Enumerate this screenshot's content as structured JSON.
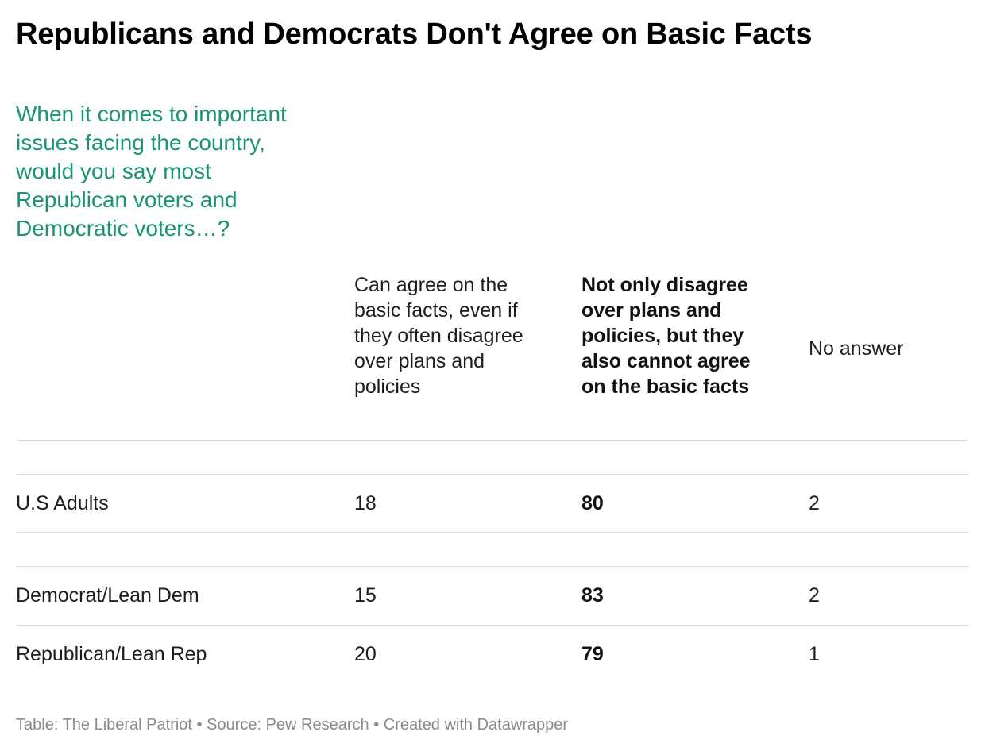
{
  "title": "Republicans and Democrats Don't Agree on Basic Facts",
  "subtitle": "When it comes to important issues facing the country, would you say most Republican voters and Democratic voters…?",
  "colors": {
    "subtitle": "#1a9472",
    "title": "#000000",
    "text": "#1d1d1d",
    "footer": "#8a8a8a",
    "rule": "#dddddd"
  },
  "chart_data": {
    "type": "table",
    "title": "Republicans and Democrats Don't Agree on Basic Facts",
    "subtitle": "When it comes to important issues facing the country, would you say most Republican voters and Democratic voters…?",
    "columns": [
      "",
      "Can agree on the basic facts, even if they often disagree over plans and policies",
      "Not only disagree over plans and policies, but they also cannot agree on the basic facts",
      "No answer"
    ],
    "rows": [
      {
        "label": "",
        "values": [
          "",
          "",
          ""
        ]
      },
      {
        "label": "U.S Adults",
        "values": [
          "18",
          "80",
          "2"
        ]
      },
      {
        "label": "",
        "values": [
          "",
          "",
          ""
        ]
      },
      {
        "label": "Democrat/Lean Dem",
        "values": [
          "15",
          "83",
          "2"
        ]
      },
      {
        "label": "Republican/Lean Rep",
        "values": [
          "20",
          "79",
          "1"
        ]
      }
    ],
    "emphasized_column": 2
  },
  "footer": {
    "text": "Table: The Liberal Patriot • Source: Pew Research • Created with Datawrapper"
  }
}
